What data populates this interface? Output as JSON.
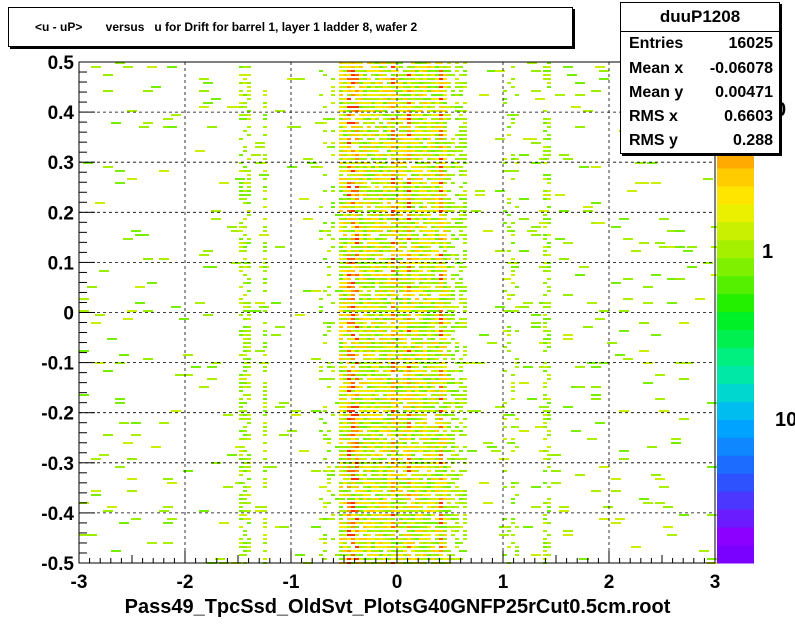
{
  "title": "<u - uP>       versus   u for Drift for barrel 1, layer 1 ladder 8, wafer 2",
  "stats": {
    "name": "duuP1208",
    "rows": [
      {
        "label": "Entries",
        "value": "16025"
      },
      {
        "label": "Mean x",
        "value": "-0.06078"
      },
      {
        "label": "Mean y",
        "value": "0.00471"
      },
      {
        "label": "RMS x",
        "value": "0.6603"
      },
      {
        "label": "RMS y",
        "value": "0.288"
      }
    ]
  },
  "xtitle": "Pass49_TpcSsd_OldSvt_PlotsG40GNFP25rCut0.5cm.root",
  "colorbar": {
    "labels": [
      "0",
      "1",
      "10"
    ],
    "colors": [
      "#7a00ff",
      "#8b00ff",
      "#6a1cff",
      "#4b37ff",
      "#2f52ff",
      "#1c6dff",
      "#0f88ff",
      "#00a3ff",
      "#00bdf0",
      "#00d7cf",
      "#00e8a6",
      "#00f080",
      "#00f050",
      "#00f028",
      "#22f000",
      "#55f000",
      "#7ef000",
      "#a5f000",
      "#c8f000",
      "#eaf000",
      "#ffe500",
      "#ffcc00",
      "#ffaa00"
    ]
  },
  "chart_data": {
    "type": "heatmap",
    "xlim": [
      -3,
      3
    ],
    "ylim": [
      -0.5,
      0.5
    ],
    "x_ticks": [
      "-3",
      "-2",
      "-1",
      "0",
      "1",
      "2",
      "3"
    ],
    "y_ticks": [
      "-0.5",
      "-0.4",
      "-0.3",
      "-0.2",
      "-0.1",
      "0",
      "0.1",
      "0.2",
      "0.3",
      "0.4",
      "0.5"
    ],
    "grid": true,
    "x_bands": [
      {
        "x_min": -1.5,
        "x_max": -1.4,
        "level": "medium"
      },
      {
        "x_min": -1.3,
        "x_max": -1.25,
        "level": "medium"
      },
      {
        "x_min": -0.75,
        "x_max": -0.6,
        "level": "low"
      },
      {
        "x_min": -0.55,
        "x_max": 0.45,
        "level": "high"
      },
      {
        "x_min": 0.45,
        "x_max": 0.65,
        "level": "medium"
      },
      {
        "x_min": 1.0,
        "x_max": 1.15,
        "level": "low"
      },
      {
        "x_min": 1.35,
        "x_max": 1.45,
        "level": "medium"
      }
    ],
    "peak_columns": [
      -0.45,
      -0.4,
      -0.05,
      0.1,
      0.4
    ]
  }
}
